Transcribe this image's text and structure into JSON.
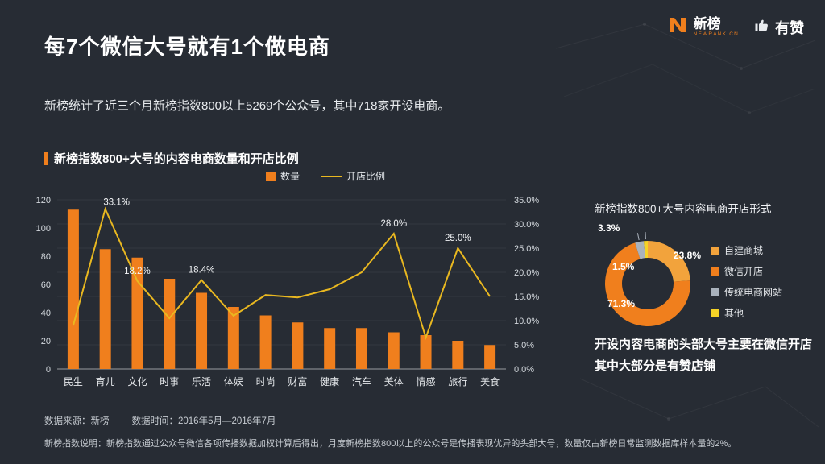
{
  "page": {
    "background": "#272c34",
    "accent": "#f07f1d"
  },
  "logos": {
    "newrank": {
      "name": "新榜",
      "sub": "NEWRANK.CN",
      "icon": "newrank-n-mark",
      "color": "#f07f1d"
    },
    "youzan": {
      "name": "有赞",
      "icon": "thumbs-up"
    }
  },
  "header": {
    "title": "每7个微信大号就有1个做电商",
    "subtitle": "新榜统计了近三个月新榜指数800以上5269个公众号，其中718家开设电商。"
  },
  "chart_data": [
    {
      "type": "bar",
      "subtype": "bar+line combo",
      "title": "新榜指数800+大号的内容电商数量和开店比例",
      "categories": [
        "民生",
        "育儿",
        "文化",
        "时事",
        "乐活",
        "体娱",
        "时尚",
        "财富",
        "健康",
        "汽车",
        "美体",
        "情感",
        "旅行",
        "美食"
      ],
      "series": [
        {
          "name": "数量",
          "type": "bar",
          "axis": "left",
          "color": "#f07f1d",
          "values": [
            113,
            85,
            79,
            64,
            54,
            44,
            38,
            33,
            29,
            29,
            26,
            24,
            20,
            17
          ]
        },
        {
          "name": "开店比例",
          "type": "line",
          "axis": "right",
          "color": "#e9b820",
          "values": [
            9.0,
            33.1,
            18.2,
            10.5,
            18.4,
            11.0,
            15.3,
            14.8,
            16.5,
            20.0,
            28.0,
            6.5,
            25.0,
            15.0
          ]
        }
      ],
      "point_labels": [
        "",
        "33.1%",
        "18.2%",
        "",
        "18.4%",
        "",
        "",
        "",
        "",
        "",
        "28.0%",
        "",
        "25.0%",
        ""
      ],
      "left_axis": {
        "min": 0,
        "max": 120,
        "step": 20
      },
      "right_axis": {
        "min": 0,
        "max": 35,
        "step": 5,
        "suffix": "%"
      },
      "grid": "faint horizontal",
      "legend_position": "top-center"
    },
    {
      "type": "pie",
      "donut": true,
      "title": "新榜指数800+大号内容电商开店形式",
      "labels": [
        "自建商城",
        "微信开店",
        "传统电商网站",
        "其他"
      ],
      "values": [
        23.8,
        71.3,
        3.3,
        1.5
      ],
      "colors": [
        "#f2a33c",
        "#f07f1d",
        "#a9b2bc",
        "#f5d327"
      ],
      "legend_position": "right"
    }
  ],
  "donut": {
    "caption_line1": "开设内容电商的头部大号主要在微信开店",
    "caption_line2": "其中大部分是有赞店铺"
  },
  "footer": {
    "source": "数据来源：新榜",
    "time": "数据时间：2016年5月—2016年7月",
    "note": "新榜指数说明：新榜指数通过公众号微信各项传播数据加权计算后得出，月度新榜指数800以上的公众号是传播表现优异的头部大号，数量仅占新榜日常监测数据库样本量的2%。"
  }
}
